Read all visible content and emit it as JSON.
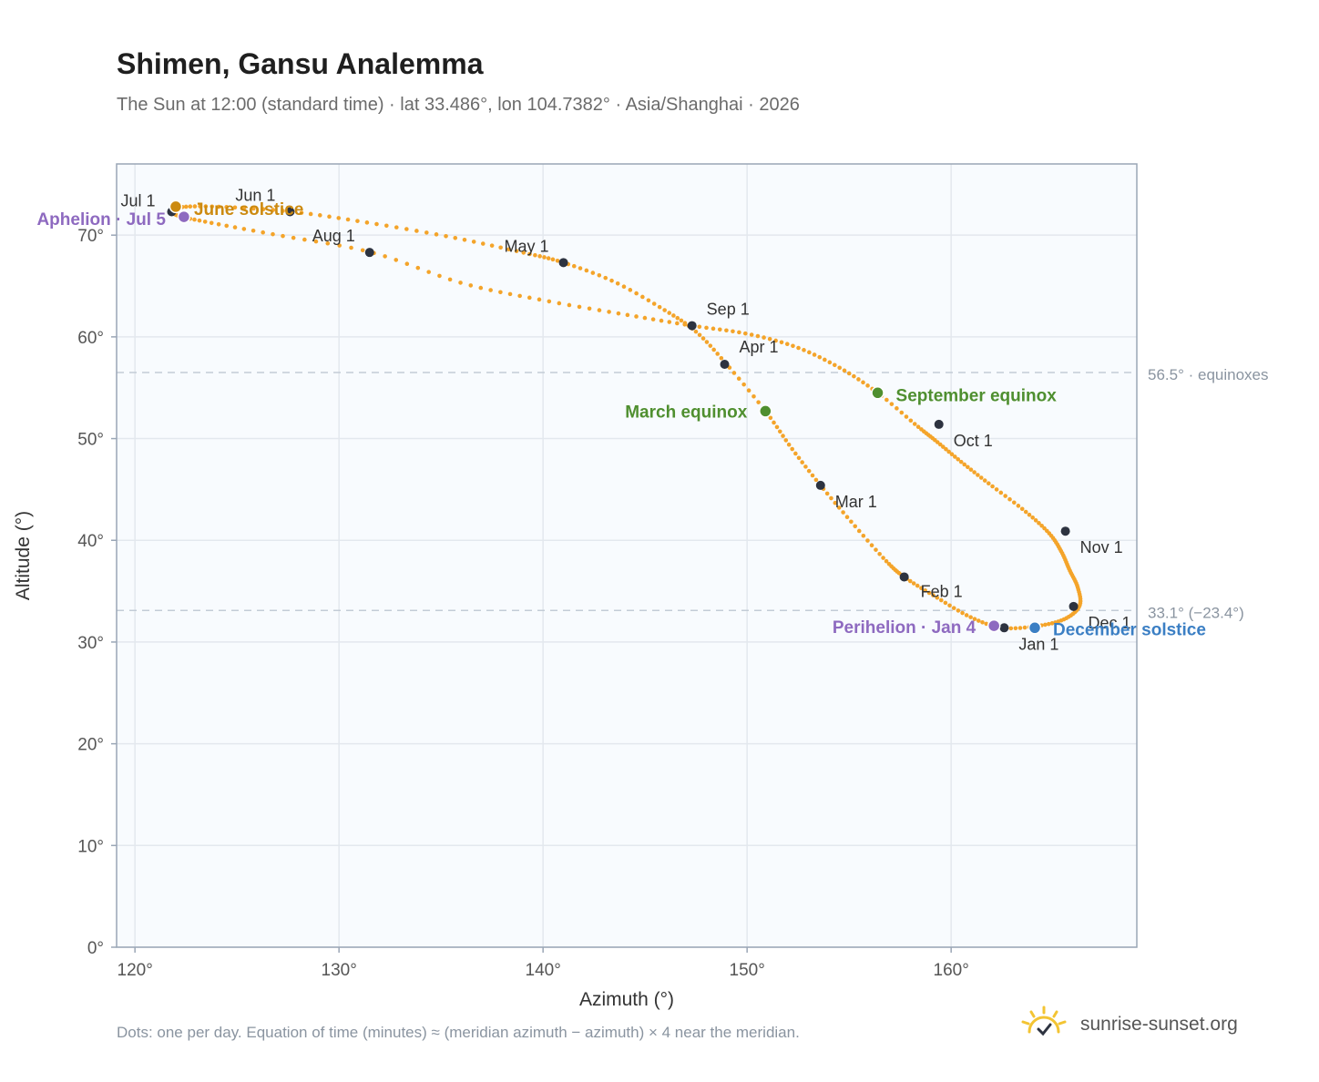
{
  "header": {
    "title": "Shimen, Gansu Analemma",
    "subtitle": "The Sun at 12:00 (standard time) · lat 33.486°, lon 104.7382° · Asia/Shanghai · 2026"
  },
  "footer": {
    "note": "Dots: one per day. Equation of time (minutes) ≈ (meridian azimuth − azimuth) × 4 near the meridian.",
    "brand": "sunrise-sunset.org"
  },
  "colors": {
    "curve": "#f4a42a",
    "month_dot": "#2d3340",
    "equinox": "#4f8f2f",
    "perihelion_aphelion": "#8e6ac0",
    "june_solstice": "#cc8a10",
    "december_solstice": "#3b7fc4",
    "plot_bg": "#f8fbfe",
    "grid": "#e3e8ee",
    "ref_line": "#c3ccd6",
    "brand_sun": "#f3c433"
  },
  "chart_data": {
    "type": "scatter",
    "title": "Shimen, Gansu Analemma",
    "xlabel": "Azimuth (°)",
    "ylabel": "Altitude (°)",
    "xlim": [
      119.1,
      169.1
    ],
    "ylim": [
      0,
      77
    ],
    "xticks": [
      120,
      130,
      140,
      150,
      160
    ],
    "xtick_labels": [
      "120°",
      "130°",
      "140°",
      "150°",
      "160°"
    ],
    "yticks": [
      0,
      10,
      20,
      30,
      40,
      50,
      60,
      70
    ],
    "ytick_labels": [
      "0°",
      "10°",
      "20°",
      "30°",
      "40°",
      "50°",
      "60°",
      "70°"
    ],
    "grid": true,
    "reference_lines": [
      {
        "y": 56.5,
        "label": "56.5° · equinoxes"
      },
      {
        "y": 33.1,
        "label": "33.1° (−23.4°)"
      }
    ],
    "series": [
      {
        "points": [
          [
            162.5,
            31.4
          ],
          [
            164.3,
            31.6
          ],
          [
            165.6,
            32.3
          ],
          [
            166.3,
            33.6
          ],
          [
            166.2,
            35.4
          ],
          [
            165.8,
            37.1
          ],
          [
            165.4,
            38.9
          ],
          [
            164.8,
            40.7
          ],
          [
            163.6,
            42.9
          ],
          [
            161.9,
            45.5
          ],
          [
            160.5,
            47.7
          ],
          [
            159.3,
            49.7
          ],
          [
            158.3,
            51.3
          ],
          [
            156.4,
            54.5
          ],
          [
            154.5,
            57.0
          ],
          [
            152.4,
            59.0
          ],
          [
            150.0,
            60.3
          ],
          [
            147.3,
            61.1
          ],
          [
            144.0,
            62.2
          ],
          [
            140.0,
            63.6
          ],
          [
            136.0,
            65.3
          ],
          [
            131.6,
            68.3
          ],
          [
            127.0,
            70.0
          ],
          [
            123.5,
            71.3
          ],
          [
            122.0,
            72.0
          ],
          [
            122.1,
            72.7
          ],
          [
            124.0,
            72.8
          ],
          [
            127.7,
            72.3
          ],
          [
            131.5,
            71.2
          ],
          [
            135.5,
            69.8
          ],
          [
            139.0,
            68.3
          ],
          [
            141.0,
            67.3
          ],
          [
            143.5,
            65.4
          ],
          [
            145.9,
            62.7
          ],
          [
            147.5,
            60.5
          ],
          [
            149.0,
            57.3
          ],
          [
            150.9,
            52.7
          ],
          [
            152.2,
            49.0
          ],
          [
            153.6,
            45.4
          ],
          [
            155.2,
            41.6
          ],
          [
            156.8,
            38.0
          ],
          [
            157.7,
            36.4
          ],
          [
            159.2,
            34.5
          ],
          [
            160.9,
            32.5
          ],
          [
            162.5,
            31.4
          ]
        ]
      }
    ],
    "month_markers": [
      {
        "label": "Jan 1",
        "az": 162.6,
        "alt": 31.4
      },
      {
        "label": "Feb 1",
        "az": 157.7,
        "alt": 36.4
      },
      {
        "label": "Mar 1",
        "az": 153.6,
        "alt": 45.4
      },
      {
        "label": "Apr 1",
        "az": 148.9,
        "alt": 57.3
      },
      {
        "label": "May 1",
        "az": 141.0,
        "alt": 67.3
      },
      {
        "label": "Jun 1",
        "az": 127.6,
        "alt": 72.3
      },
      {
        "label": "Jul 1",
        "az": 121.8,
        "alt": 72.3
      },
      {
        "label": "Aug 1",
        "az": 131.5,
        "alt": 68.3
      },
      {
        "label": "Sep 1",
        "az": 147.3,
        "alt": 61.1
      },
      {
        "label": "Oct 1",
        "az": 159.4,
        "alt": 51.4
      },
      {
        "label": "Nov 1",
        "az": 165.6,
        "alt": 40.9
      },
      {
        "label": "Dec 1",
        "az": 166.0,
        "alt": 33.5
      }
    ],
    "events": [
      {
        "label": "March equinox",
        "az": 150.9,
        "alt": 52.7,
        "color": "equinox"
      },
      {
        "label": "September equinox",
        "az": 156.4,
        "alt": 54.5,
        "color": "equinox"
      },
      {
        "label": "June solstice",
        "az": 122.0,
        "alt": 72.8,
        "color": "june_solstice"
      },
      {
        "label": "December solstice",
        "az": 164.1,
        "alt": 31.4,
        "color": "december_solstice"
      },
      {
        "label": "Aphelion · Jul 5",
        "az": 122.4,
        "alt": 71.8,
        "color": "perihelion_aphelion"
      },
      {
        "label": "Perihelion · Jan 4",
        "az": 162.1,
        "alt": 31.6,
        "color": "perihelion_aphelion"
      }
    ]
  }
}
